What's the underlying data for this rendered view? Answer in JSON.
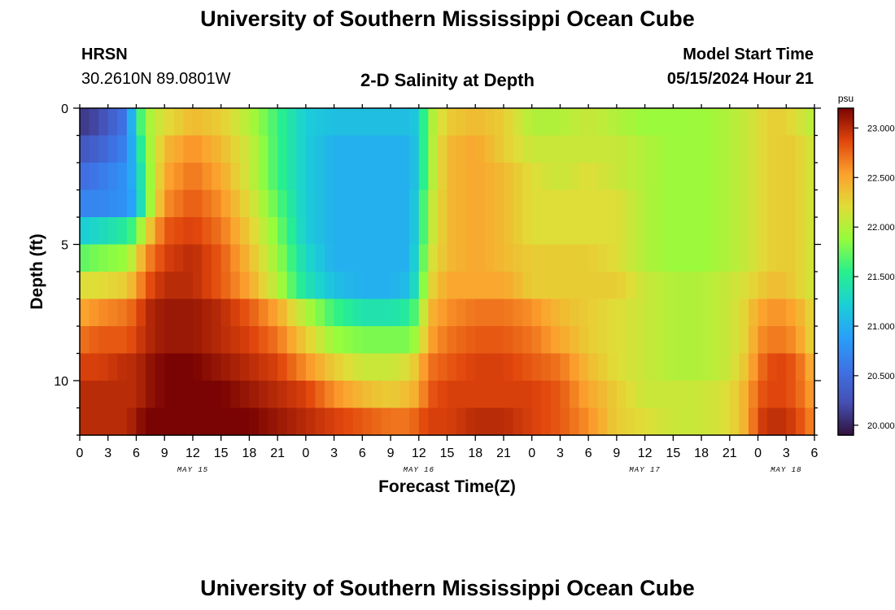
{
  "header": {
    "title": "University of Southern Mississippi Ocean Cube",
    "station_code": "HRSN",
    "coordinates": "30.2610N  89.0801W",
    "subtitle": "2-D Salinity at Depth",
    "model_start_label": "Model Start Time",
    "model_start_value": "05/15/2024 Hour 21"
  },
  "footer": {
    "title": "University of Southern Mississippi Ocean Cube"
  },
  "chart_data": {
    "type": "heatmap",
    "title": "2-D Salinity at Depth",
    "xlabel": "Forecast Time(Z)",
    "ylabel": "Depth (ft)",
    "x_range_hours": [
      0,
      78
    ],
    "y_range_ft": [
      0,
      12
    ],
    "x_tick_labels": [
      "0",
      "3",
      "6",
      "9",
      "12",
      "15",
      "18",
      "21",
      "0",
      "3",
      "6",
      "9",
      "12",
      "15",
      "18",
      "21",
      "0",
      "3",
      "6",
      "9",
      "12",
      "15",
      "18",
      "21",
      "0",
      "3",
      "6"
    ],
    "date_labels": [
      {
        "label": "MAY 15",
        "hour": 12
      },
      {
        "label": "MAY 16",
        "hour": 36
      },
      {
        "label": "MAY 17",
        "hour": 60
      },
      {
        "label": "MAY 18",
        "hour": 75
      }
    ],
    "y_tick_labels": [
      "0",
      "5",
      "10"
    ],
    "colorbar": {
      "unit": "psu",
      "min": 19.9,
      "max": 23.2,
      "tick_labels": [
        "20.000",
        "20.500",
        "21.000",
        "21.500",
        "22.000",
        "22.500",
        "23.000"
      ]
    },
    "depth_levels_ft": [
      0.5,
      1.5,
      2.5,
      3.5,
      4.5,
      5.5,
      6.5,
      7.5,
      8.5,
      9.5,
      10.5,
      11.5
    ],
    "key_hours": [
      0,
      2,
      5,
      6,
      7,
      9,
      12,
      15,
      18,
      21,
      24,
      27,
      30,
      33,
      35,
      36,
      37,
      39,
      42,
      45,
      48,
      51,
      54,
      57,
      60,
      63,
      66,
      69,
      71,
      72,
      74,
      76,
      78
    ],
    "salinity_psu_rows": [
      [
        20.1,
        20.2,
        20.6,
        21.4,
        21.9,
        22.2,
        22.4,
        22.3,
        22.0,
        21.6,
        21.2,
        21.1,
        21.1,
        21.1,
        21.1,
        21.2,
        21.9,
        22.3,
        22.4,
        22.3,
        22.0,
        22.0,
        22.1,
        22.0,
        21.9,
        21.9,
        21.9,
        22.0,
        22.1,
        22.2,
        22.3,
        22.2,
        22.0
      ],
      [
        20.3,
        20.4,
        20.7,
        21.2,
        21.8,
        22.4,
        22.6,
        22.4,
        22.1,
        21.6,
        21.2,
        21.0,
        21.0,
        21.0,
        21.0,
        21.2,
        21.9,
        22.4,
        22.5,
        22.3,
        22.1,
        22.1,
        22.1,
        22.1,
        22.0,
        21.9,
        21.9,
        22.0,
        22.1,
        22.2,
        22.3,
        22.3,
        22.1
      ],
      [
        20.5,
        20.6,
        20.8,
        21.1,
        21.7,
        22.5,
        22.7,
        22.5,
        22.1,
        21.6,
        21.2,
        21.0,
        21.0,
        21.0,
        21.0,
        21.2,
        21.9,
        22.4,
        22.5,
        22.4,
        22.2,
        22.1,
        22.2,
        22.1,
        22.0,
        21.9,
        21.9,
        22.0,
        22.1,
        22.2,
        22.3,
        22.3,
        22.1
      ],
      [
        20.7,
        20.7,
        20.8,
        21.0,
        21.7,
        22.6,
        22.8,
        22.6,
        22.2,
        21.7,
        21.2,
        21.0,
        21.0,
        21.0,
        21.0,
        21.3,
        22.0,
        22.4,
        22.5,
        22.4,
        22.2,
        22.2,
        22.2,
        22.2,
        22.0,
        21.9,
        21.9,
        22.0,
        22.1,
        22.2,
        22.3,
        22.3,
        22.1
      ],
      [
        21.2,
        21.3,
        21.5,
        21.7,
        22.2,
        22.8,
        22.9,
        22.7,
        22.3,
        21.8,
        21.2,
        21.0,
        21.0,
        21.0,
        21.0,
        21.3,
        22.0,
        22.4,
        22.5,
        22.4,
        22.2,
        22.2,
        22.2,
        22.2,
        22.0,
        21.9,
        21.9,
        22.0,
        22.1,
        22.2,
        22.3,
        22.3,
        22.1
      ],
      [
        21.7,
        21.8,
        21.9,
        22.2,
        22.6,
        22.9,
        23.0,
        22.8,
        22.4,
        21.9,
        21.3,
        21.0,
        21.0,
        21.0,
        21.0,
        21.4,
        22.1,
        22.4,
        22.5,
        22.4,
        22.3,
        22.3,
        22.3,
        22.2,
        22.0,
        21.9,
        21.9,
        22.0,
        22.1,
        22.2,
        22.3,
        22.3,
        22.1
      ],
      [
        22.2,
        22.2,
        22.3,
        22.5,
        22.8,
        23.0,
        23.0,
        22.8,
        22.5,
        22.0,
        21.4,
        21.1,
        21.0,
        21.0,
        21.1,
        21.5,
        22.2,
        22.5,
        22.5,
        22.5,
        22.3,
        22.3,
        22.3,
        22.3,
        22.1,
        22.0,
        22.0,
        22.1,
        22.2,
        22.3,
        22.4,
        22.3,
        22.1
      ],
      [
        22.5,
        22.6,
        22.7,
        22.8,
        23.0,
        23.1,
        23.1,
        23.0,
        22.8,
        22.5,
        22.0,
        21.6,
        21.4,
        21.4,
        21.5,
        21.8,
        22.4,
        22.6,
        22.7,
        22.7,
        22.6,
        22.4,
        22.3,
        22.2,
        22.1,
        22.0,
        22.0,
        22.1,
        22.3,
        22.5,
        22.6,
        22.5,
        22.2
      ],
      [
        22.7,
        22.8,
        22.8,
        22.9,
        23.0,
        23.1,
        23.1,
        23.0,
        22.9,
        22.7,
        22.3,
        21.9,
        21.8,
        21.8,
        21.8,
        22.0,
        22.5,
        22.7,
        22.8,
        22.8,
        22.7,
        22.5,
        22.3,
        22.2,
        22.1,
        22.0,
        22.0,
        22.1,
        22.3,
        22.6,
        22.7,
        22.6,
        22.2
      ],
      [
        22.9,
        22.9,
        23.0,
        23.0,
        23.1,
        23.2,
        23.2,
        23.1,
        23.0,
        22.9,
        22.6,
        22.3,
        22.1,
        22.1,
        22.2,
        22.4,
        22.7,
        22.8,
        22.9,
        22.9,
        22.8,
        22.7,
        22.4,
        22.2,
        22.1,
        22.0,
        22.0,
        22.1,
        22.4,
        22.7,
        22.9,
        22.8,
        22.4
      ],
      [
        23.0,
        23.0,
        23.0,
        23.0,
        23.1,
        23.2,
        23.2,
        23.2,
        23.1,
        23.0,
        22.9,
        22.6,
        22.4,
        22.3,
        22.4,
        22.5,
        22.8,
        22.9,
        22.9,
        22.9,
        22.9,
        22.8,
        22.5,
        22.3,
        22.1,
        22.1,
        22.1,
        22.2,
        22.5,
        22.8,
        22.9,
        22.8,
        22.5
      ],
      [
        23.0,
        23.0,
        23.0,
        23.1,
        23.2,
        23.3,
        23.4,
        23.3,
        23.2,
        23.1,
        23.0,
        22.9,
        22.8,
        22.7,
        22.7,
        22.8,
        22.9,
        22.9,
        23.0,
        23.0,
        22.9,
        22.8,
        22.6,
        22.3,
        22.2,
        22.1,
        22.1,
        22.2,
        22.5,
        22.9,
        23.0,
        22.9,
        22.6
      ]
    ]
  }
}
